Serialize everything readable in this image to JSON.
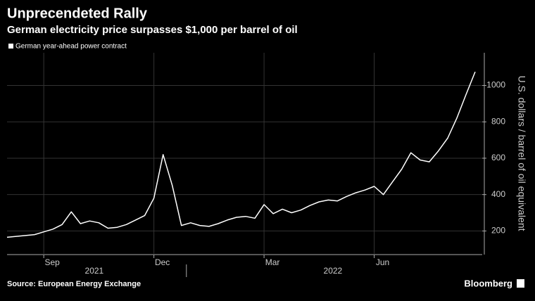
{
  "chart_data": {
    "type": "line",
    "title": "Unprecendeted Rally",
    "subtitle": "German electricity price surpasses $1,000 per barrel of oil",
    "y_axis_label": "U.S. dollars / barrel of oil equivalent",
    "source": "Source: European Energy Exchange",
    "brand": "Bloomberg",
    "x": [
      "2021-08",
      "2021-08",
      "2021-08",
      "2021-08",
      "2021-09",
      "2021-09",
      "2021-09",
      "2021-09",
      "2021-10",
      "2021-10",
      "2021-10",
      "2021-10",
      "2021-11",
      "2021-11",
      "2021-11",
      "2021-11",
      "2021-12",
      "2021-12",
      "2021-12",
      "2021-12",
      "2022-01",
      "2022-01",
      "2022-01",
      "2022-01",
      "2022-02",
      "2022-02",
      "2022-02",
      "2022-02",
      "2022-03",
      "2022-03",
      "2022-03",
      "2022-03",
      "2022-04",
      "2022-04",
      "2022-04",
      "2022-04",
      "2022-05",
      "2022-05",
      "2022-05",
      "2022-05",
      "2022-06",
      "2022-06",
      "2022-06",
      "2022-06",
      "2022-07",
      "2022-07",
      "2022-07",
      "2022-07",
      "2022-08",
      "2022-08",
      "2022-08",
      "2022-08"
    ],
    "series": [
      {
        "name": "German year-ahead power contract",
        "color": "#ffffff",
        "values": [
          165,
          170,
          175,
          180,
          195,
          210,
          235,
          305,
          240,
          255,
          245,
          215,
          220,
          235,
          260,
          285,
          380,
          620,
          450,
          230,
          245,
          230,
          225,
          240,
          260,
          275,
          280,
          270,
          345,
          295,
          320,
          300,
          315,
          340,
          360,
          370,
          365,
          390,
          410,
          425,
          445,
          400,
          470,
          540,
          630,
          590,
          580,
          640,
          710,
          820,
          950,
          1075
        ]
      }
    ],
    "xticks": [
      {
        "value": "2021-09",
        "label": "Sep"
      },
      {
        "value": "2021-12",
        "label": "Dec"
      },
      {
        "value": "2022-03",
        "label": "Mar"
      },
      {
        "value": "2022-06",
        "label": "Jun"
      }
    ],
    "x_year_labels": [
      "2021",
      "2022"
    ],
    "ylim": [
      70,
      1180
    ],
    "yticks": [
      200,
      400,
      600,
      800,
      1000
    ],
    "grid": true
  }
}
